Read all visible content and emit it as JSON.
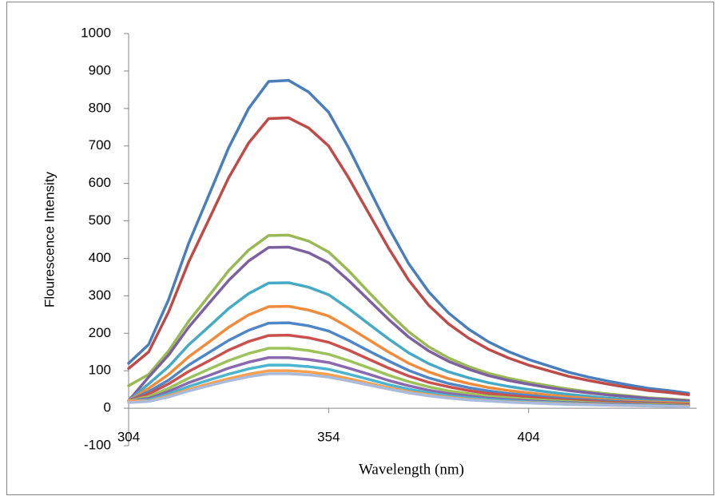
{
  "chart_data": {
    "type": "line",
    "x_label": "Wavelength (nm)",
    "y_label": "Flourescence Intensity",
    "xlim": [
      304,
      446
    ],
    "xticks": [
      304,
      354,
      404
    ],
    "ylim": [
      -100,
      1000
    ],
    "yticks": [
      -100,
      0,
      100,
      200,
      300,
      400,
      500,
      600,
      700,
      800,
      900,
      1000
    ],
    "grid": false,
    "x": [
      304,
      309,
      314,
      319,
      324,
      329,
      334,
      339,
      344,
      349,
      354,
      359,
      364,
      369,
      374,
      379,
      384,
      389,
      394,
      399,
      404,
      409,
      414,
      419,
      424,
      429,
      434,
      439,
      444
    ],
    "series": [
      {
        "color": "#4a7ebb",
        "values": [
          120,
          170,
          290,
          440,
          567,
          695,
          800,
          872,
          875,
          844,
          790,
          695,
          588,
          482,
          386,
          311,
          254,
          211,
          177,
          151,
          130,
          113,
          96,
          83,
          72,
          62,
          53,
          47,
          40
        ]
      },
      {
        "color": "#be4b48",
        "values": [
          106,
          150,
          257,
          390,
          502,
          615,
          708,
          773,
          775,
          748,
          700,
          615,
          521,
          427,
          342,
          275,
          225,
          187,
          157,
          134,
          115,
          100,
          85,
          74,
          64,
          55,
          47,
          42,
          36
        ]
      },
      {
        "color": "#98b954",
        "values": [
          60,
          90,
          153,
          232,
          299,
          367,
          422,
          461,
          462,
          446,
          417,
          367,
          310,
          255,
          204,
          164,
          134,
          111,
          93,
          80,
          69,
          60,
          51,
          44,
          38,
          33,
          28,
          25,
          21
        ]
      },
      {
        "color": "#7d60a0",
        "values": [
          20,
          83,
          142,
          216,
          279,
          341,
          393,
          429,
          430,
          415,
          388,
          341,
          289,
          237,
          190,
          153,
          125,
          104,
          87,
          74,
          64,
          55,
          47,
          41,
          35,
          31,
          26,
          23,
          20
        ]
      },
      {
        "color": "#46aac5",
        "values": [
          20,
          65,
          111,
          169,
          217,
          266,
          306,
          334,
          335,
          323,
          303,
          266,
          225,
          185,
          148,
          119,
          97,
          81,
          68,
          58,
          50,
          43,
          37,
          32,
          27,
          24,
          20,
          18,
          15
        ]
      },
      {
        "color": "#f08b3c",
        "values": [
          20,
          53,
          90,
          137,
          176,
          216,
          249,
          271,
          272,
          262,
          246,
          216,
          183,
          150,
          120,
          97,
          79,
          66,
          55,
          47,
          41,
          35,
          30,
          26,
          22,
          19,
          17,
          15,
          13
        ]
      },
      {
        "color": "#4f86c6",
        "values": [
          20,
          44,
          75,
          115,
          148,
          181,
          208,
          227,
          228,
          220,
          206,
          181,
          153,
          126,
          101,
          81,
          66,
          55,
          46,
          39,
          34,
          29,
          25,
          22,
          19,
          16,
          14,
          12,
          10
        ]
      },
      {
        "color": "#c9504d",
        "values": [
          20,
          38,
          65,
          98,
          126,
          155,
          178,
          194,
          195,
          188,
          176,
          155,
          131,
          107,
          86,
          69,
          57,
          47,
          39,
          34,
          29,
          25,
          21,
          19,
          16,
          14,
          12,
          11,
          9
        ]
      },
      {
        "color": "#9bc35a",
        "values": [
          20,
          31,
          53,
          80,
          104,
          127,
          146,
          160,
          160,
          154,
          144,
          127,
          108,
          88,
          71,
          57,
          46,
          39,
          32,
          28,
          24,
          21,
          18,
          15,
          13,
          11,
          10,
          9,
          7
        ]
      },
      {
        "color": "#8a6aae",
        "values": [
          20,
          26,
          45,
          68,
          87,
          107,
          123,
          135,
          135,
          130,
          122,
          107,
          91,
          74,
          60,
          48,
          39,
          33,
          27,
          23,
          20,
          17,
          15,
          13,
          11,
          10,
          8,
          7,
          6
        ]
      },
      {
        "color": "#4bb4cf",
        "values": [
          20,
          22,
          38,
          58,
          75,
          91,
          105,
          115,
          115,
          111,
          104,
          91,
          77,
          63,
          51,
          41,
          33,
          28,
          23,
          20,
          17,
          15,
          13,
          11,
          9,
          8,
          7,
          6,
          5
        ]
      },
      {
        "color": "#f9a050",
        "values": [
          20,
          19,
          33,
          50,
          65,
          79,
          91,
          100,
          100,
          97,
          90,
          79,
          67,
          55,
          44,
          36,
          29,
          24,
          20,
          17,
          15,
          13,
          11,
          10,
          8,
          7,
          6,
          5,
          5
        ]
      },
      {
        "color": "#a8bbdd",
        "values": [
          15,
          18,
          30,
          46,
          60,
          73,
          84,
          92,
          92,
          89,
          83,
          73,
          62,
          51,
          41,
          33,
          27,
          22,
          19,
          16,
          14,
          12,
          10,
          9,
          8,
          7,
          6,
          5,
          4
        ]
      }
    ]
  }
}
